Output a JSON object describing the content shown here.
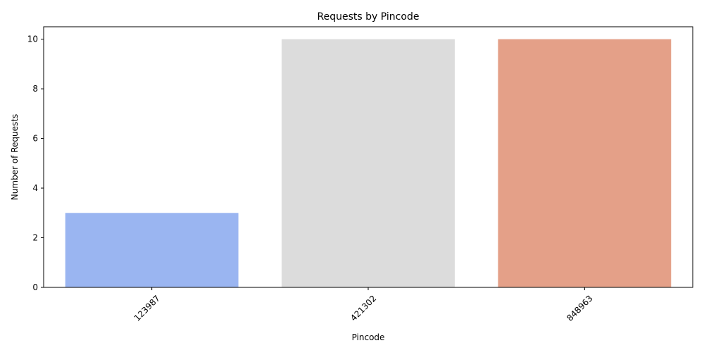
{
  "chart_data": {
    "type": "bar",
    "title": "Requests by Pincode",
    "xlabel": "Pincode",
    "ylabel": "Number of Requests",
    "categories": [
      "123987",
      "421302",
      "848963"
    ],
    "values": [
      3,
      10,
      10
    ],
    "colors": [
      "#9ab5f1",
      "#dcdcdc",
      "#e4a088"
    ],
    "ylim": [
      0,
      10.5
    ],
    "yticks": [
      0,
      2,
      4,
      6,
      8,
      10
    ],
    "x_tick_rotation": 45,
    "grid": false,
    "legend": "none"
  }
}
